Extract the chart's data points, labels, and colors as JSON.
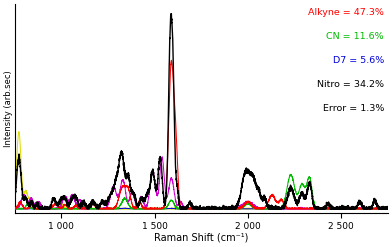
{
  "xlabel": "Raman Shift (cm⁻¹)",
  "ylabel": "Intensity (arb.sec)",
  "xlim": [
    750,
    2750
  ],
  "ylim": [
    -0.02,
    1.05
  ],
  "legend_texts": [
    "Alkyne = 47.3%",
    "CN = 11.6%",
    "D7 = 5.6%",
    "Nitro = 34.2%",
    "Error = 1.3%"
  ],
  "legend_colors": [
    "#ff0000",
    "#00bb00",
    "#0000dd",
    "#000000",
    "#000000"
  ],
  "background_color": "#ffffff",
  "alkyne_color": "#ff0000",
  "cn_color": "#00bb00",
  "d7_color": "#0000dd",
  "nitro_color": "#cc00cc",
  "yellow_color": "#dddd00",
  "black_color": "#000000",
  "figsize": [
    3.92,
    2.47
  ],
  "dpi": 100,
  "xticks": [
    1000,
    1500,
    2000,
    2500
  ],
  "xtick_labels": [
    "1 000",
    "1 500",
    "2 000",
    "2 500"
  ]
}
